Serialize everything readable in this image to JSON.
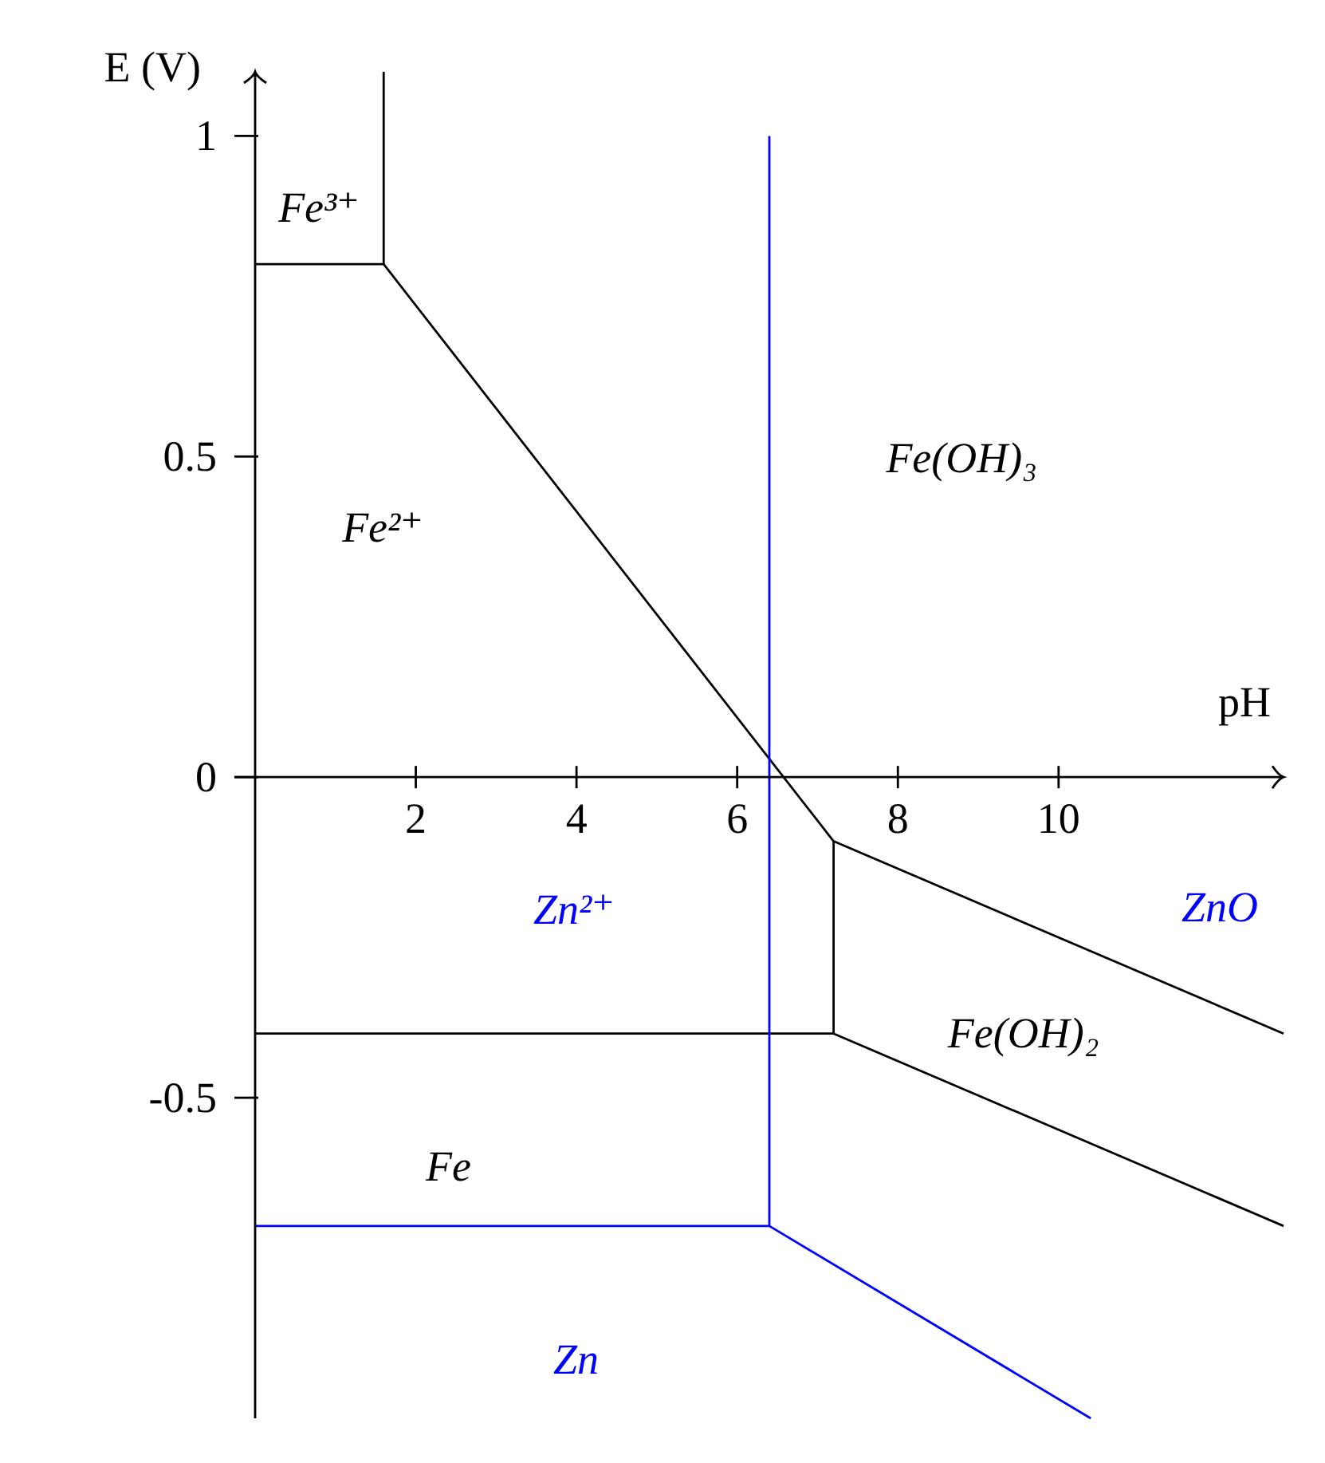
{
  "chart_data": {
    "type": "line",
    "xlabel": "pH",
    "ylabel": "E (V)",
    "xlim": [
      0,
      12.8
    ],
    "ylim": [
      -1.0,
      1.1
    ],
    "xticks": [
      2,
      4,
      6,
      8,
      10
    ],
    "yticks": [
      -0.5,
      0,
      0.5,
      1
    ],
    "series": [
      {
        "color": "#000000",
        "x": [
          0,
          1.6,
          7.2,
          12.8
        ],
        "values": [
          0.8,
          0.8,
          -0.1,
          -0.4
        ]
      },
      {
        "color": "#000000",
        "x": [
          1.6,
          1.6
        ],
        "values": [
          1.1,
          0.8
        ]
      },
      {
        "color": "#000000",
        "x": [
          7.2,
          7.2
        ],
        "values": [
          -0.1,
          -0.4
        ]
      },
      {
        "color": "#000000",
        "x": [
          0,
          7.2,
          12.8
        ],
        "values": [
          -0.4,
          -0.4,
          -0.7
        ]
      },
      {
        "color": "#0000ff",
        "x": [
          6.4,
          6.4
        ],
        "values": [
          1.0,
          -0.7
        ]
      },
      {
        "color": "#0000ff",
        "x": [
          0,
          6.4,
          10.4
        ],
        "values": [
          -0.7,
          -0.7,
          -1.0
        ]
      }
    ],
    "annotations": [
      "Fe³⁺",
      "Fe²⁺",
      "Fe(OH)₃",
      "Zn²⁺",
      "ZnO",
      "Fe(OH)₂",
      "Fe",
      "Zn"
    ]
  }
}
